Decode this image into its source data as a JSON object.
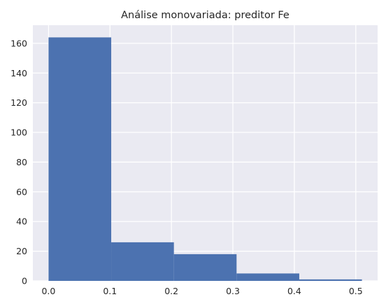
{
  "chart_data": {
    "type": "bar",
    "subtype": "histogram",
    "title": "Análise monovariada: preditor Fe",
    "xlabel": "",
    "ylabel": "",
    "bins": [
      {
        "start": 0.0,
        "end": 0.102,
        "count": 164
      },
      {
        "start": 0.102,
        "end": 0.204,
        "count": 26
      },
      {
        "start": 0.204,
        "end": 0.306,
        "count": 18
      },
      {
        "start": 0.306,
        "end": 0.408,
        "count": 5
      },
      {
        "start": 0.408,
        "end": 0.51,
        "count": 1
      }
    ],
    "xlim": [
      -0.0255,
      0.5355
    ],
    "ylim": [
      0,
      172.2
    ],
    "xticks": [
      0.0,
      0.1,
      0.2,
      0.3,
      0.4,
      0.5
    ],
    "xtick_labels": [
      "0.0",
      "0.1",
      "0.2",
      "0.3",
      "0.4",
      "0.5"
    ],
    "yticks": [
      0,
      20,
      40,
      60,
      80,
      100,
      120,
      140,
      160
    ],
    "ytick_labels": [
      "0",
      "20",
      "40",
      "60",
      "80",
      "100",
      "120",
      "140",
      "160"
    ],
    "grid": true,
    "colors": {
      "bar": "#4c72b0",
      "plot_background": "#eaeaf2",
      "grid": "#ffffff",
      "text": "#262626"
    }
  }
}
